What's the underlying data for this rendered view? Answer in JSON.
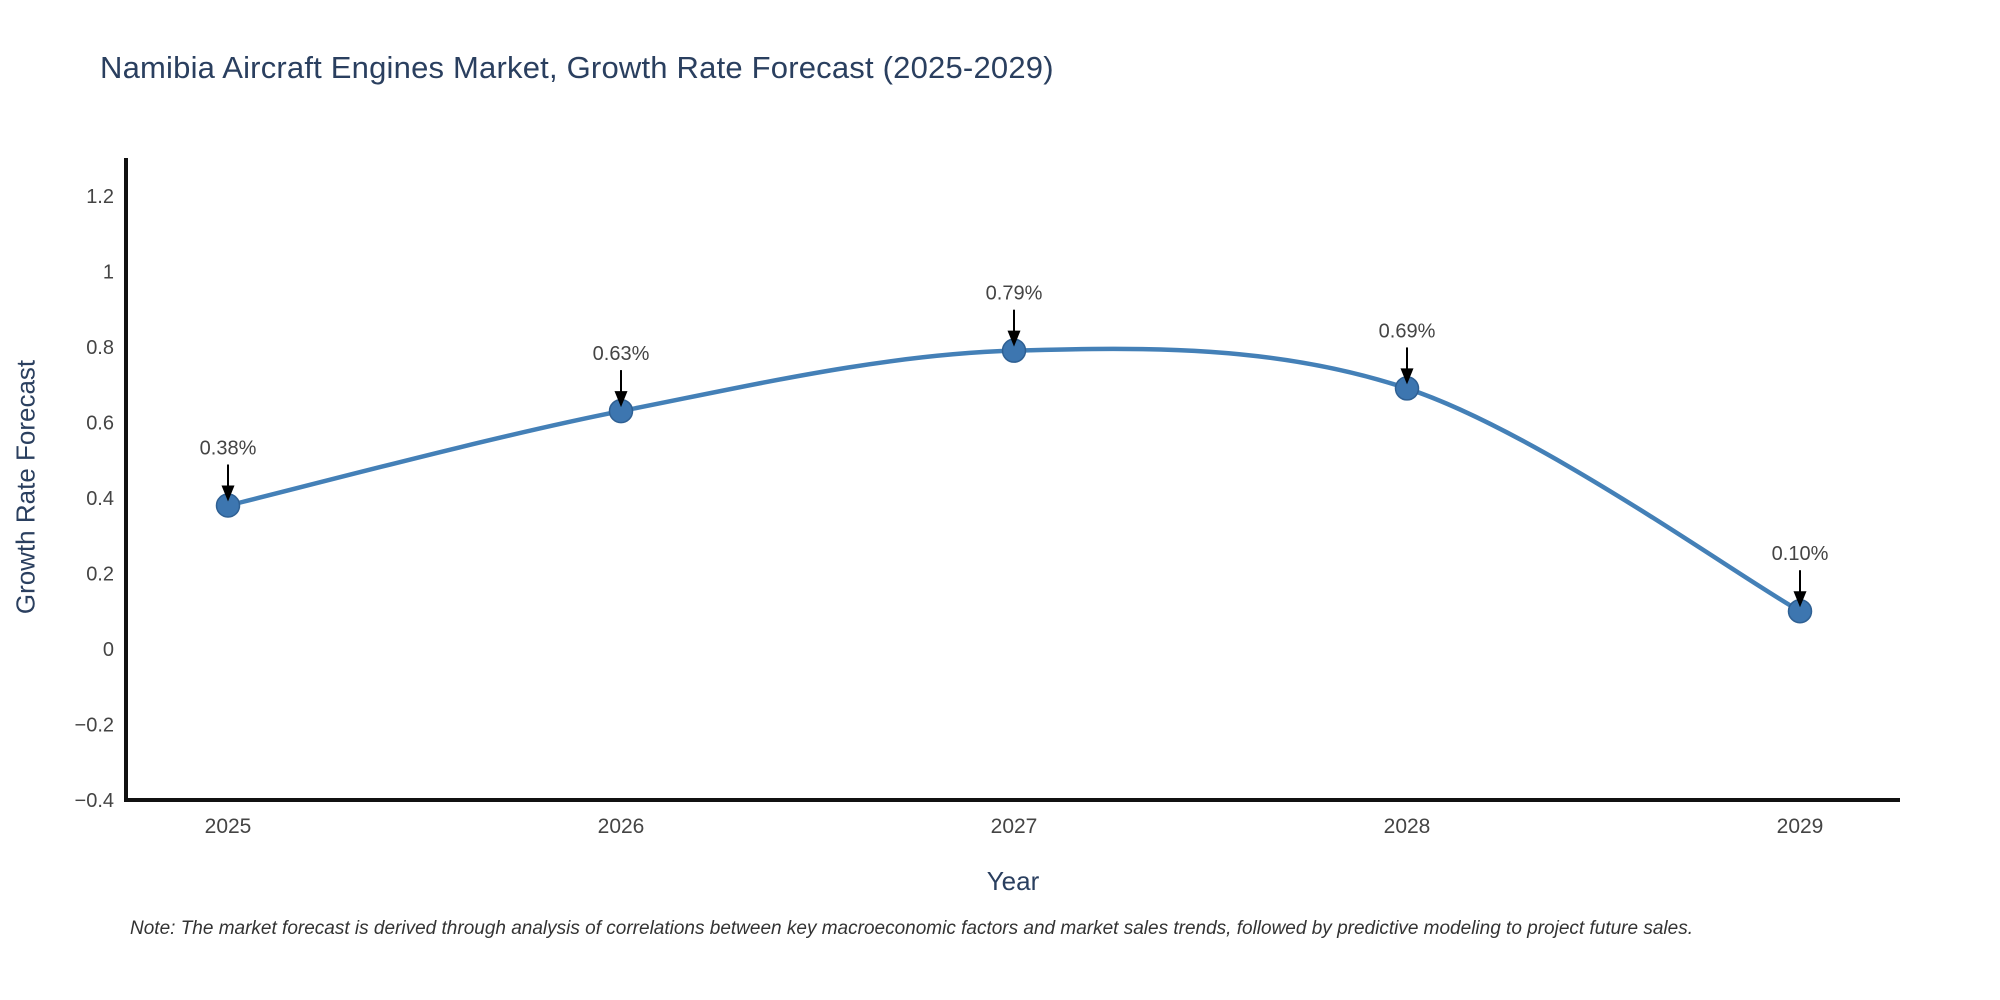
{
  "note": "Note: The market forecast is derived through analysis of correlations between key macroeconomic factors and market sales trends, followed by predictive modeling to project future sales.",
  "colors": {
    "line": "#4480b7",
    "marker_fill": "#3d76b0",
    "marker_border": "#2f6093",
    "axis_line": "#111111",
    "tick_label": "#444444",
    "title_text": "#2a3f5f",
    "annotation_text": "#444444",
    "arrow": "#000000",
    "background": "#ffffff"
  },
  "chart_data": {
    "type": "line",
    "line_shape": "spline",
    "title": "Namibia Aircraft Engines Market, Growth Rate Forecast (2025-2029)",
    "xlabel": "Year",
    "ylabel": "Growth Rate Forecast",
    "categories": [
      "2025",
      "2026",
      "2027",
      "2028",
      "2029"
    ],
    "series": [
      {
        "name": "Growth Rate Forecast",
        "values": [
          0.38,
          0.63,
          0.79,
          0.69,
          0.1
        ]
      }
    ],
    "annotations": [
      "0.38%",
      "0.63%",
      "0.79%",
      "0.69%",
      "0.10%"
    ],
    "ylim": [
      -0.4,
      1.295
    ],
    "yticks": [
      {
        "v": -0.4,
        "label": "−0.4"
      },
      {
        "v": -0.2,
        "label": "−0.2"
      },
      {
        "v": 0,
        "label": "0"
      },
      {
        "v": 0.2,
        "label": "0.2"
      },
      {
        "v": 0.4,
        "label": "0.4"
      },
      {
        "v": 0.6,
        "label": "0.6"
      },
      {
        "v": 0.8,
        "label": "0.8"
      },
      {
        "v": 1,
        "label": "1"
      },
      {
        "v": 1.2,
        "label": "1.2"
      }
    ],
    "grid": false,
    "legend": "none"
  }
}
